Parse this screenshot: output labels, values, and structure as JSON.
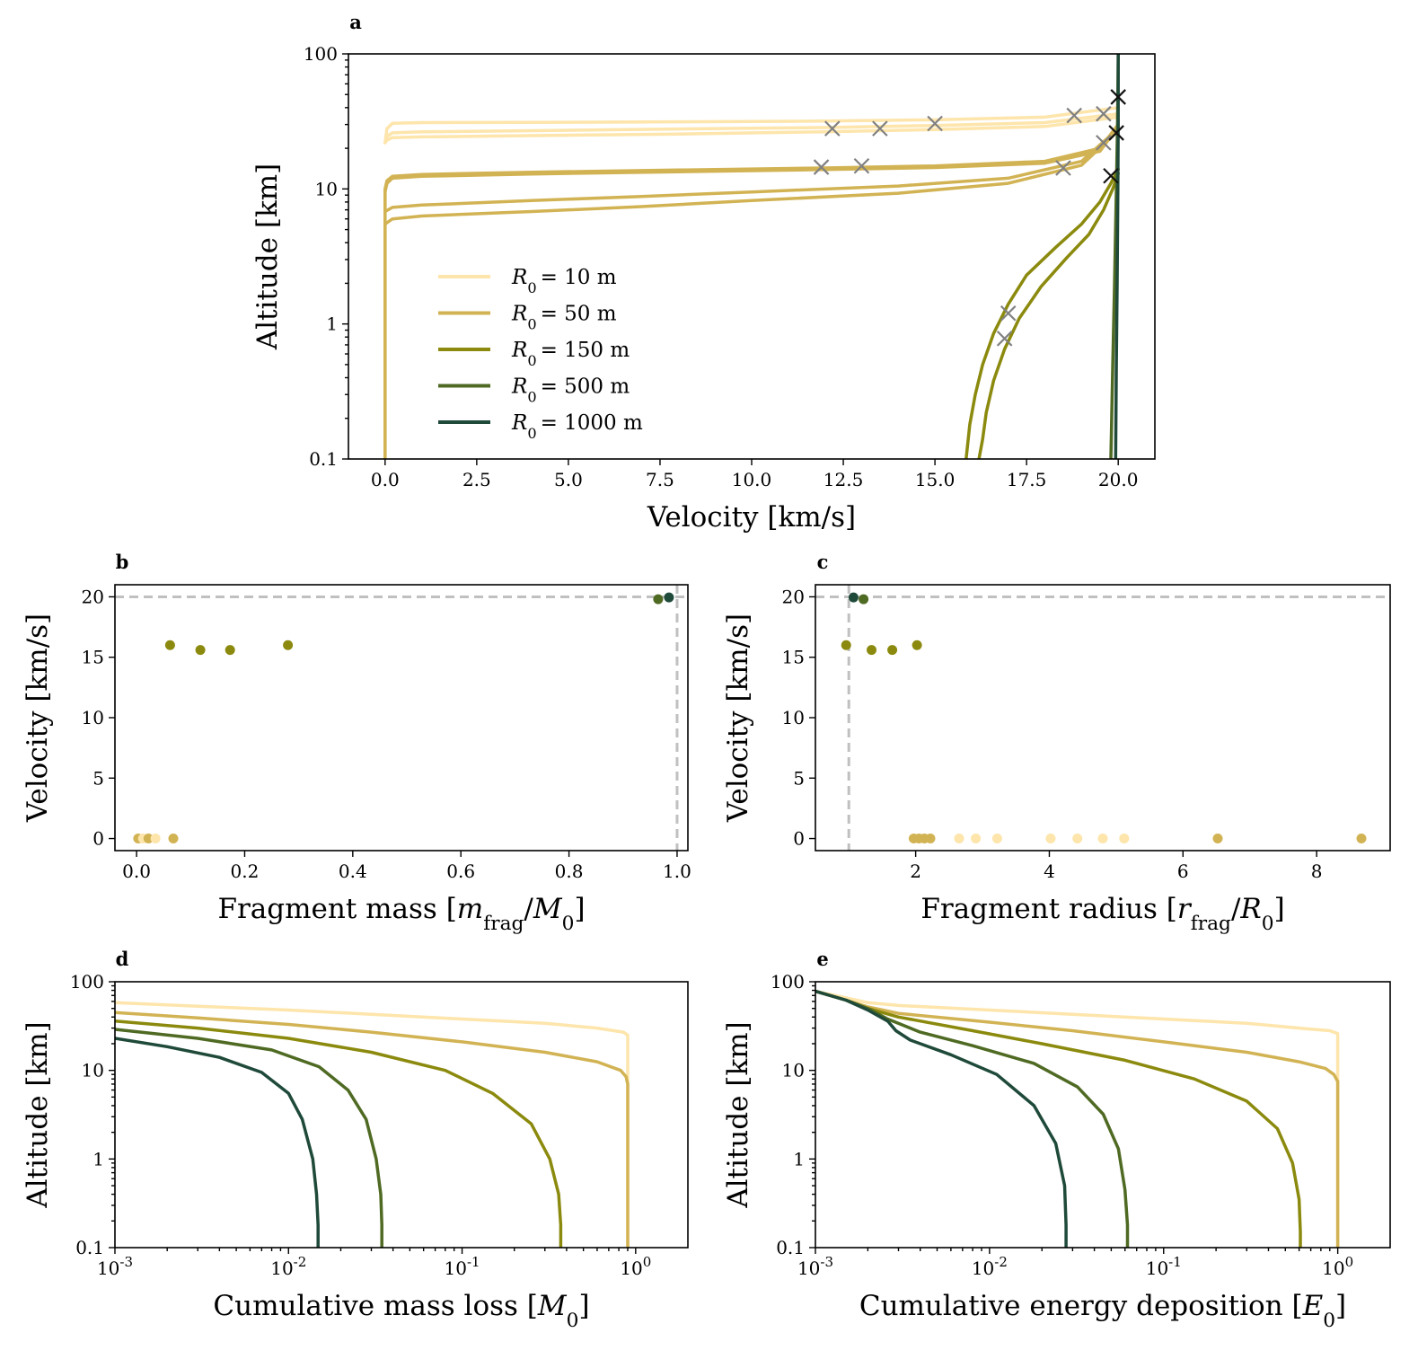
{
  "colors": {
    "r10": "#fde5ab",
    "r50": "#d2b354",
    "r150": "#8b8a0e",
    "r500": "#4f6a23",
    "r1000": "#1f4a3a",
    "cross_grey": "#808080",
    "cross_black": "#111111",
    "ref": "#c0c0c0"
  },
  "chart_data": [
    {
      "id": "a",
      "panel_label": "a",
      "type": "line",
      "xlabel": "Velocity [km/s]",
      "ylabel": "Altitude [km]",
      "xlim": [
        -1.0,
        21.0
      ],
      "ylim": [
        0.1,
        100
      ],
      "yscale": "log",
      "xticks": [
        0,
        2.5,
        5,
        7.5,
        10,
        12.5,
        15,
        17.5,
        20
      ],
      "xticklabels": [
        "0.0",
        "2.5",
        "5.0",
        "7.5",
        "10.0",
        "12.5",
        "15.0",
        "17.5",
        "20.0"
      ],
      "yticks": [
        0.1,
        1,
        10,
        100
      ],
      "yticklabels": [
        "0.1",
        "1",
        "10",
        "100"
      ],
      "legend_position": "lower-left",
      "legend": [
        {
          "label": "R₀ =  10 m",
          "color": "r10"
        },
        {
          "label": "R₀ =  50 m",
          "color": "r50"
        },
        {
          "label": "R₀ =  150 m",
          "color": "r150"
        },
        {
          "label": "R₀ =  500 m",
          "color": "r500"
        },
        {
          "label": "R₀ =  1000 m",
          "color": "r1000"
        }
      ],
      "series": [
        {
          "name": "R0 = 10 m",
          "color": "r10",
          "x": [
            20.0,
            18.0,
            15.0,
            12.0,
            8.0,
            4.0,
            1.0,
            0.2,
            0.05,
            0.02,
            0.0
          ],
          "y": [
            40,
            34,
            32.5,
            31.8,
            31.4,
            31.1,
            31.0,
            30.6,
            28,
            24,
            22
          ]
        },
        {
          "name": "R0 = 10 m",
          "color": "r10",
          "x": [
            20.0,
            18.0,
            15.0,
            12.0,
            8.0,
            4.0,
            1.0,
            0.2,
            0.05,
            0.0
          ],
          "y": [
            36,
            31,
            29.5,
            28.5,
            27.8,
            27.0,
            26.5,
            26.0,
            24.5,
            22
          ]
        },
        {
          "name": "R0 = 10 m",
          "color": "r10",
          "x": [
            20.0,
            18.0,
            15.0,
            12.0,
            8.0,
            4.0,
            1.0,
            0.2,
            0.05,
            0.0
          ],
          "y": [
            34,
            29,
            27.5,
            26.5,
            25.5,
            24.8,
            24.3,
            24.0,
            23.0,
            22
          ]
        },
        {
          "name": "R0 = 50 m",
          "color": "r50",
          "x": [
            20.0,
            19.5,
            18.0,
            15.0,
            12.0,
            8.0,
            4.0,
            1.0,
            0.2,
            0.05,
            0.0,
            0.0
          ],
          "y": [
            30,
            20,
            16.0,
            14.8,
            14.3,
            13.8,
            13.3,
            12.8,
            12.4,
            11.5,
            10,
            0.1
          ]
        },
        {
          "name": "R0 = 50 m",
          "color": "r50",
          "x": [
            20.0,
            19.5,
            18.0,
            15.0,
            12.0,
            8.0,
            4.0,
            1.0,
            0.2,
            0.05,
            0.0,
            0.0
          ],
          "y": [
            29,
            19,
            15.5,
            14.4,
            13.9,
            13.4,
            12.9,
            12.4,
            12.0,
            11.0,
            9.5,
            0.1
          ]
        },
        {
          "name": "R0 = 50 m",
          "color": "r50",
          "x": [
            20.0,
            19.0,
            17.0,
            14.0,
            10.0,
            7.0,
            4.0,
            1.0,
            0.2,
            0.0
          ],
          "y": [
            28,
            16,
            12.0,
            10.5,
            9.5,
            8.8,
            8.2,
            7.6,
            7.3,
            6.8
          ]
        },
        {
          "name": "R0 = 50 m",
          "color": "r50",
          "x": [
            20.0,
            19.0,
            17.0,
            14.0,
            10.0,
            7.0,
            4.0,
            1.0,
            0.2,
            0.0
          ],
          "y": [
            27,
            15,
            11.0,
            9.3,
            8.2,
            7.4,
            6.8,
            6.3,
            6.0,
            5.5
          ]
        },
        {
          "name": "R0 = 150 m",
          "color": "r150",
          "x": [
            20.0,
            19.8,
            19.5,
            19.0,
            18.3,
            17.5,
            17.0,
            16.6,
            16.3,
            16.1,
            15.95,
            15.85
          ],
          "y": [
            14,
            11,
            8,
            5.5,
            3.7,
            2.3,
            1.4,
            0.85,
            0.5,
            0.3,
            0.18,
            0.1
          ]
        },
        {
          "name": "R0 = 150 m",
          "color": "r150",
          "x": [
            20.0,
            19.85,
            19.6,
            19.2,
            18.6,
            17.9,
            17.3,
            16.9,
            16.6,
            16.4,
            16.3,
            16.2
          ],
          "y": [
            13,
            10,
            7,
            4.6,
            3.1,
            1.9,
            1.1,
            0.65,
            0.38,
            0.22,
            0.14,
            0.1
          ]
        },
        {
          "name": "R0 = 500 m",
          "color": "r500",
          "x": [
            20.0,
            19.98,
            19.95,
            19.9,
            19.85,
            19.8
          ],
          "y": [
            100,
            30,
            10,
            2,
            0.5,
            0.1
          ]
        },
        {
          "name": "R0 = 1000 m",
          "color": "r1000",
          "x": [
            20.0,
            20.0,
            19.99,
            19.97,
            19.95,
            19.93
          ],
          "y": [
            100,
            30,
            10,
            2,
            0.5,
            0.1
          ]
        }
      ],
      "markers": [
        {
          "x": 12.2,
          "y": 28,
          "color": "cross_grey"
        },
        {
          "x": 13.5,
          "y": 28,
          "color": "cross_grey"
        },
        {
          "x": 15.0,
          "y": 30.5,
          "color": "cross_grey"
        },
        {
          "x": 11.9,
          "y": 14.5,
          "color": "cross_grey"
        },
        {
          "x": 13.0,
          "y": 14.8,
          "color": "cross_grey"
        },
        {
          "x": 18.5,
          "y": 14.3,
          "color": "cross_grey"
        },
        {
          "x": 18.8,
          "y": 35,
          "color": "cross_grey"
        },
        {
          "x": 19.6,
          "y": 36,
          "color": "cross_grey"
        },
        {
          "x": 19.6,
          "y": 22,
          "color": "cross_grey"
        },
        {
          "x": 17.0,
          "y": 1.2,
          "color": "cross_grey"
        },
        {
          "x": 16.9,
          "y": 0.78,
          "color": "cross_grey"
        },
        {
          "x": 20.0,
          "y": 48,
          "color": "cross_black"
        },
        {
          "x": 19.95,
          "y": 26,
          "color": "cross_black"
        },
        {
          "x": 19.8,
          "y": 12.5,
          "color": "cross_black"
        }
      ]
    },
    {
      "id": "b",
      "panel_label": "b",
      "type": "scatter",
      "xlabel": "Fragment mass [m_frag/M₀]",
      "ylabel": "Velocity [km/s]",
      "xlim": [
        -0.04,
        1.02
      ],
      "ylim": [
        -1,
        21
      ],
      "xticks": [
        0,
        0.2,
        0.4,
        0.6,
        0.8,
        1.0
      ],
      "xticklabels": [
        "0.0",
        "0.2",
        "0.4",
        "0.6",
        "0.8",
        "1.0"
      ],
      "yticks": [
        0,
        5,
        10,
        15,
        20
      ],
      "yticklabels": [
        "0",
        "5",
        "10",
        "15",
        "20"
      ],
      "hline": 20,
      "vline": 1.0,
      "points": [
        {
          "x": 0.003,
          "y": 0,
          "color": "r50"
        },
        {
          "x": 0.012,
          "y": 0,
          "color": "r10"
        },
        {
          "x": 0.022,
          "y": 0,
          "color": "r50"
        },
        {
          "x": 0.035,
          "y": 0,
          "color": "r10"
        },
        {
          "x": 0.068,
          "y": 0,
          "color": "r50"
        },
        {
          "x": 0.062,
          "y": 16.0,
          "color": "r150"
        },
        {
          "x": 0.118,
          "y": 15.6,
          "color": "r150"
        },
        {
          "x": 0.173,
          "y": 15.6,
          "color": "r150"
        },
        {
          "x": 0.28,
          "y": 16.0,
          "color": "r150"
        },
        {
          "x": 0.965,
          "y": 19.8,
          "color": "r500"
        },
        {
          "x": 0.985,
          "y": 19.95,
          "color": "r1000"
        }
      ]
    },
    {
      "id": "c",
      "panel_label": "c",
      "type": "scatter",
      "xlabel": "Fragment radius [r_frag/R₀]",
      "ylabel": "Velocity [km/s]",
      "xlim": [
        0.5,
        9.1
      ],
      "ylim": [
        -1,
        21
      ],
      "xticks": [
        2,
        4,
        6,
        8
      ],
      "xticklabels": [
        "2",
        "4",
        "6",
        "8"
      ],
      "yticks": [
        0,
        5,
        10,
        15,
        20
      ],
      "yticklabels": [
        "0",
        "5",
        "10",
        "15",
        "20"
      ],
      "hline": 20,
      "vline": 1.0,
      "points": [
        {
          "x": 2.65,
          "y": 0,
          "color": "r10"
        },
        {
          "x": 2.9,
          "y": 0,
          "color": "r10"
        },
        {
          "x": 3.22,
          "y": 0,
          "color": "r10"
        },
        {
          "x": 4.02,
          "y": 0,
          "color": "r10"
        },
        {
          "x": 4.42,
          "y": 0,
          "color": "r10"
        },
        {
          "x": 4.8,
          "y": 0,
          "color": "r10"
        },
        {
          "x": 5.12,
          "y": 0,
          "color": "r10"
        },
        {
          "x": 1.97,
          "y": 0,
          "color": "r50"
        },
        {
          "x": 2.05,
          "y": 0,
          "color": "r50"
        },
        {
          "x": 2.13,
          "y": 0,
          "color": "r50"
        },
        {
          "x": 2.22,
          "y": 0,
          "color": "r50"
        },
        {
          "x": 6.52,
          "y": 0,
          "color": "r50"
        },
        {
          "x": 8.67,
          "y": 0,
          "color": "r50"
        },
        {
          "x": 0.96,
          "y": 16.0,
          "color": "r150"
        },
        {
          "x": 1.34,
          "y": 15.6,
          "color": "r150"
        },
        {
          "x": 1.65,
          "y": 15.6,
          "color": "r150"
        },
        {
          "x": 2.02,
          "y": 16.0,
          "color": "r150"
        },
        {
          "x": 1.22,
          "y": 19.8,
          "color": "r500"
        },
        {
          "x": 1.07,
          "y": 19.95,
          "color": "r1000"
        }
      ]
    },
    {
      "id": "d",
      "panel_label": "d",
      "type": "line",
      "xlabel": "Cumulative mass loss [M₀]",
      "ylabel": "Altitude [km]",
      "xscale": "log",
      "yscale": "log",
      "xlim": [
        0.001,
        2.0
      ],
      "ylim": [
        0.1,
        100
      ],
      "xticks": [
        0.001,
        0.01,
        0.1,
        1
      ],
      "xticklabels": [
        {
          "base": "10",
          "exp": "-3"
        },
        {
          "base": "10",
          "exp": "-2"
        },
        {
          "base": "10",
          "exp": "-1"
        },
        {
          "base": "10",
          "exp": "0"
        }
      ],
      "yticks": [
        0.1,
        1,
        10,
        100
      ],
      "yticklabels": [
        "0.1",
        "1",
        "10",
        "100"
      ],
      "series": [
        {
          "name": "R0 = 10 m",
          "color": "r10",
          "x": [
            0.001,
            0.003,
            0.01,
            0.03,
            0.1,
            0.3,
            0.6,
            0.85,
            0.9,
            0.9
          ],
          "y": [
            58,
            53,
            48,
            43,
            38,
            34,
            30,
            27,
            25,
            0.1
          ]
        },
        {
          "name": "R0 = 50 m",
          "color": "r50",
          "x": [
            0.001,
            0.003,
            0.01,
            0.03,
            0.1,
            0.3,
            0.6,
            0.82,
            0.88,
            0.9,
            0.9
          ],
          "y": [
            45,
            39,
            33,
            27,
            21,
            16,
            12.5,
            10,
            8.5,
            7,
            0.1
          ]
        },
        {
          "name": "R0 = 150 m",
          "color": "r150",
          "x": [
            0.001,
            0.003,
            0.01,
            0.03,
            0.08,
            0.15,
            0.25,
            0.32,
            0.36,
            0.37,
            0.37
          ],
          "y": [
            36,
            30,
            23,
            16,
            10,
            5.5,
            2.5,
            1.0,
            0.4,
            0.18,
            0.1
          ]
        },
        {
          "name": "R0 = 500 m",
          "color": "r500",
          "x": [
            0.001,
            0.003,
            0.008,
            0.015,
            0.022,
            0.028,
            0.032,
            0.034,
            0.0345,
            0.0345
          ],
          "y": [
            29,
            23,
            17,
            11,
            6,
            2.8,
            1.0,
            0.4,
            0.18,
            0.1
          ]
        },
        {
          "name": "R0 = 1000 m",
          "color": "r1000",
          "x": [
            0.001,
            0.002,
            0.004,
            0.007,
            0.01,
            0.012,
            0.0138,
            0.0145,
            0.0148,
            0.0148
          ],
          "y": [
            23,
            18.5,
            14,
            9.5,
            5.5,
            2.8,
            1.0,
            0.4,
            0.18,
            0.1
          ]
        }
      ]
    },
    {
      "id": "e",
      "panel_label": "e",
      "type": "line",
      "xlabel": "Cumulative energy deposition [E₀]",
      "ylabel": "Altitude [km]",
      "xscale": "log",
      "yscale": "log",
      "xlim": [
        0.001,
        2.0
      ],
      "ylim": [
        0.1,
        100
      ],
      "xticks": [
        0.001,
        0.01,
        0.1,
        1
      ],
      "xticklabels": [
        {
          "base": "10",
          "exp": "-3"
        },
        {
          "base": "10",
          "exp": "-2"
        },
        {
          "base": "10",
          "exp": "-1"
        },
        {
          "base": "10",
          "exp": "0"
        }
      ],
      "yticks": [
        0.1,
        1,
        10,
        100
      ],
      "yticklabels": [
        "0.1",
        "1",
        "10",
        "100"
      ],
      "series": [
        {
          "name": "R0 = 10 m",
          "color": "r10",
          "x": [
            0.001,
            0.0015,
            0.002,
            0.003,
            0.01,
            0.03,
            0.1,
            0.3,
            0.6,
            0.9,
            1.0,
            1.0
          ],
          "y": [
            78,
            66,
            58,
            54,
            48,
            43,
            38,
            34,
            30,
            28,
            26,
            0.1
          ]
        },
        {
          "name": "R0 = 50 m",
          "color": "r50",
          "x": [
            0.001,
            0.0015,
            0.002,
            0.003,
            0.01,
            0.03,
            0.1,
            0.3,
            0.6,
            0.85,
            0.95,
            1.0,
            1.0
          ],
          "y": [
            78,
            62,
            52,
            44,
            35,
            28,
            21,
            16,
            12.5,
            10.5,
            9,
            7.5,
            0.1
          ]
        },
        {
          "name": "R0 = 150 m",
          "color": "r150",
          "x": [
            0.001,
            0.0015,
            0.002,
            0.003,
            0.008,
            0.02,
            0.06,
            0.15,
            0.3,
            0.45,
            0.55,
            0.6,
            0.61,
            0.61
          ],
          "y": [
            78,
            62,
            50,
            40,
            28,
            20,
            13,
            8,
            4.5,
            2.2,
            0.9,
            0.35,
            0.15,
            0.1
          ]
        },
        {
          "name": "R0 = 500 m",
          "color": "r500",
          "x": [
            0.001,
            0.0015,
            0.002,
            0.0026,
            0.004,
            0.008,
            0.018,
            0.032,
            0.045,
            0.055,
            0.06,
            0.062,
            0.062
          ],
          "y": [
            78,
            62,
            50,
            38,
            27,
            19,
            12,
            6.5,
            3.2,
            1.3,
            0.45,
            0.18,
            0.1
          ]
        },
        {
          "name": "R0 = 1000 m",
          "color": "r1000",
          "x": [
            0.001,
            0.0015,
            0.002,
            0.0026,
            0.0029,
            0.0035,
            0.006,
            0.011,
            0.018,
            0.024,
            0.027,
            0.0275,
            0.0275
          ],
          "y": [
            78,
            62,
            48,
            36,
            28,
            22,
            15,
            9,
            4,
            1.5,
            0.5,
            0.18,
            0.1
          ]
        }
      ]
    }
  ]
}
